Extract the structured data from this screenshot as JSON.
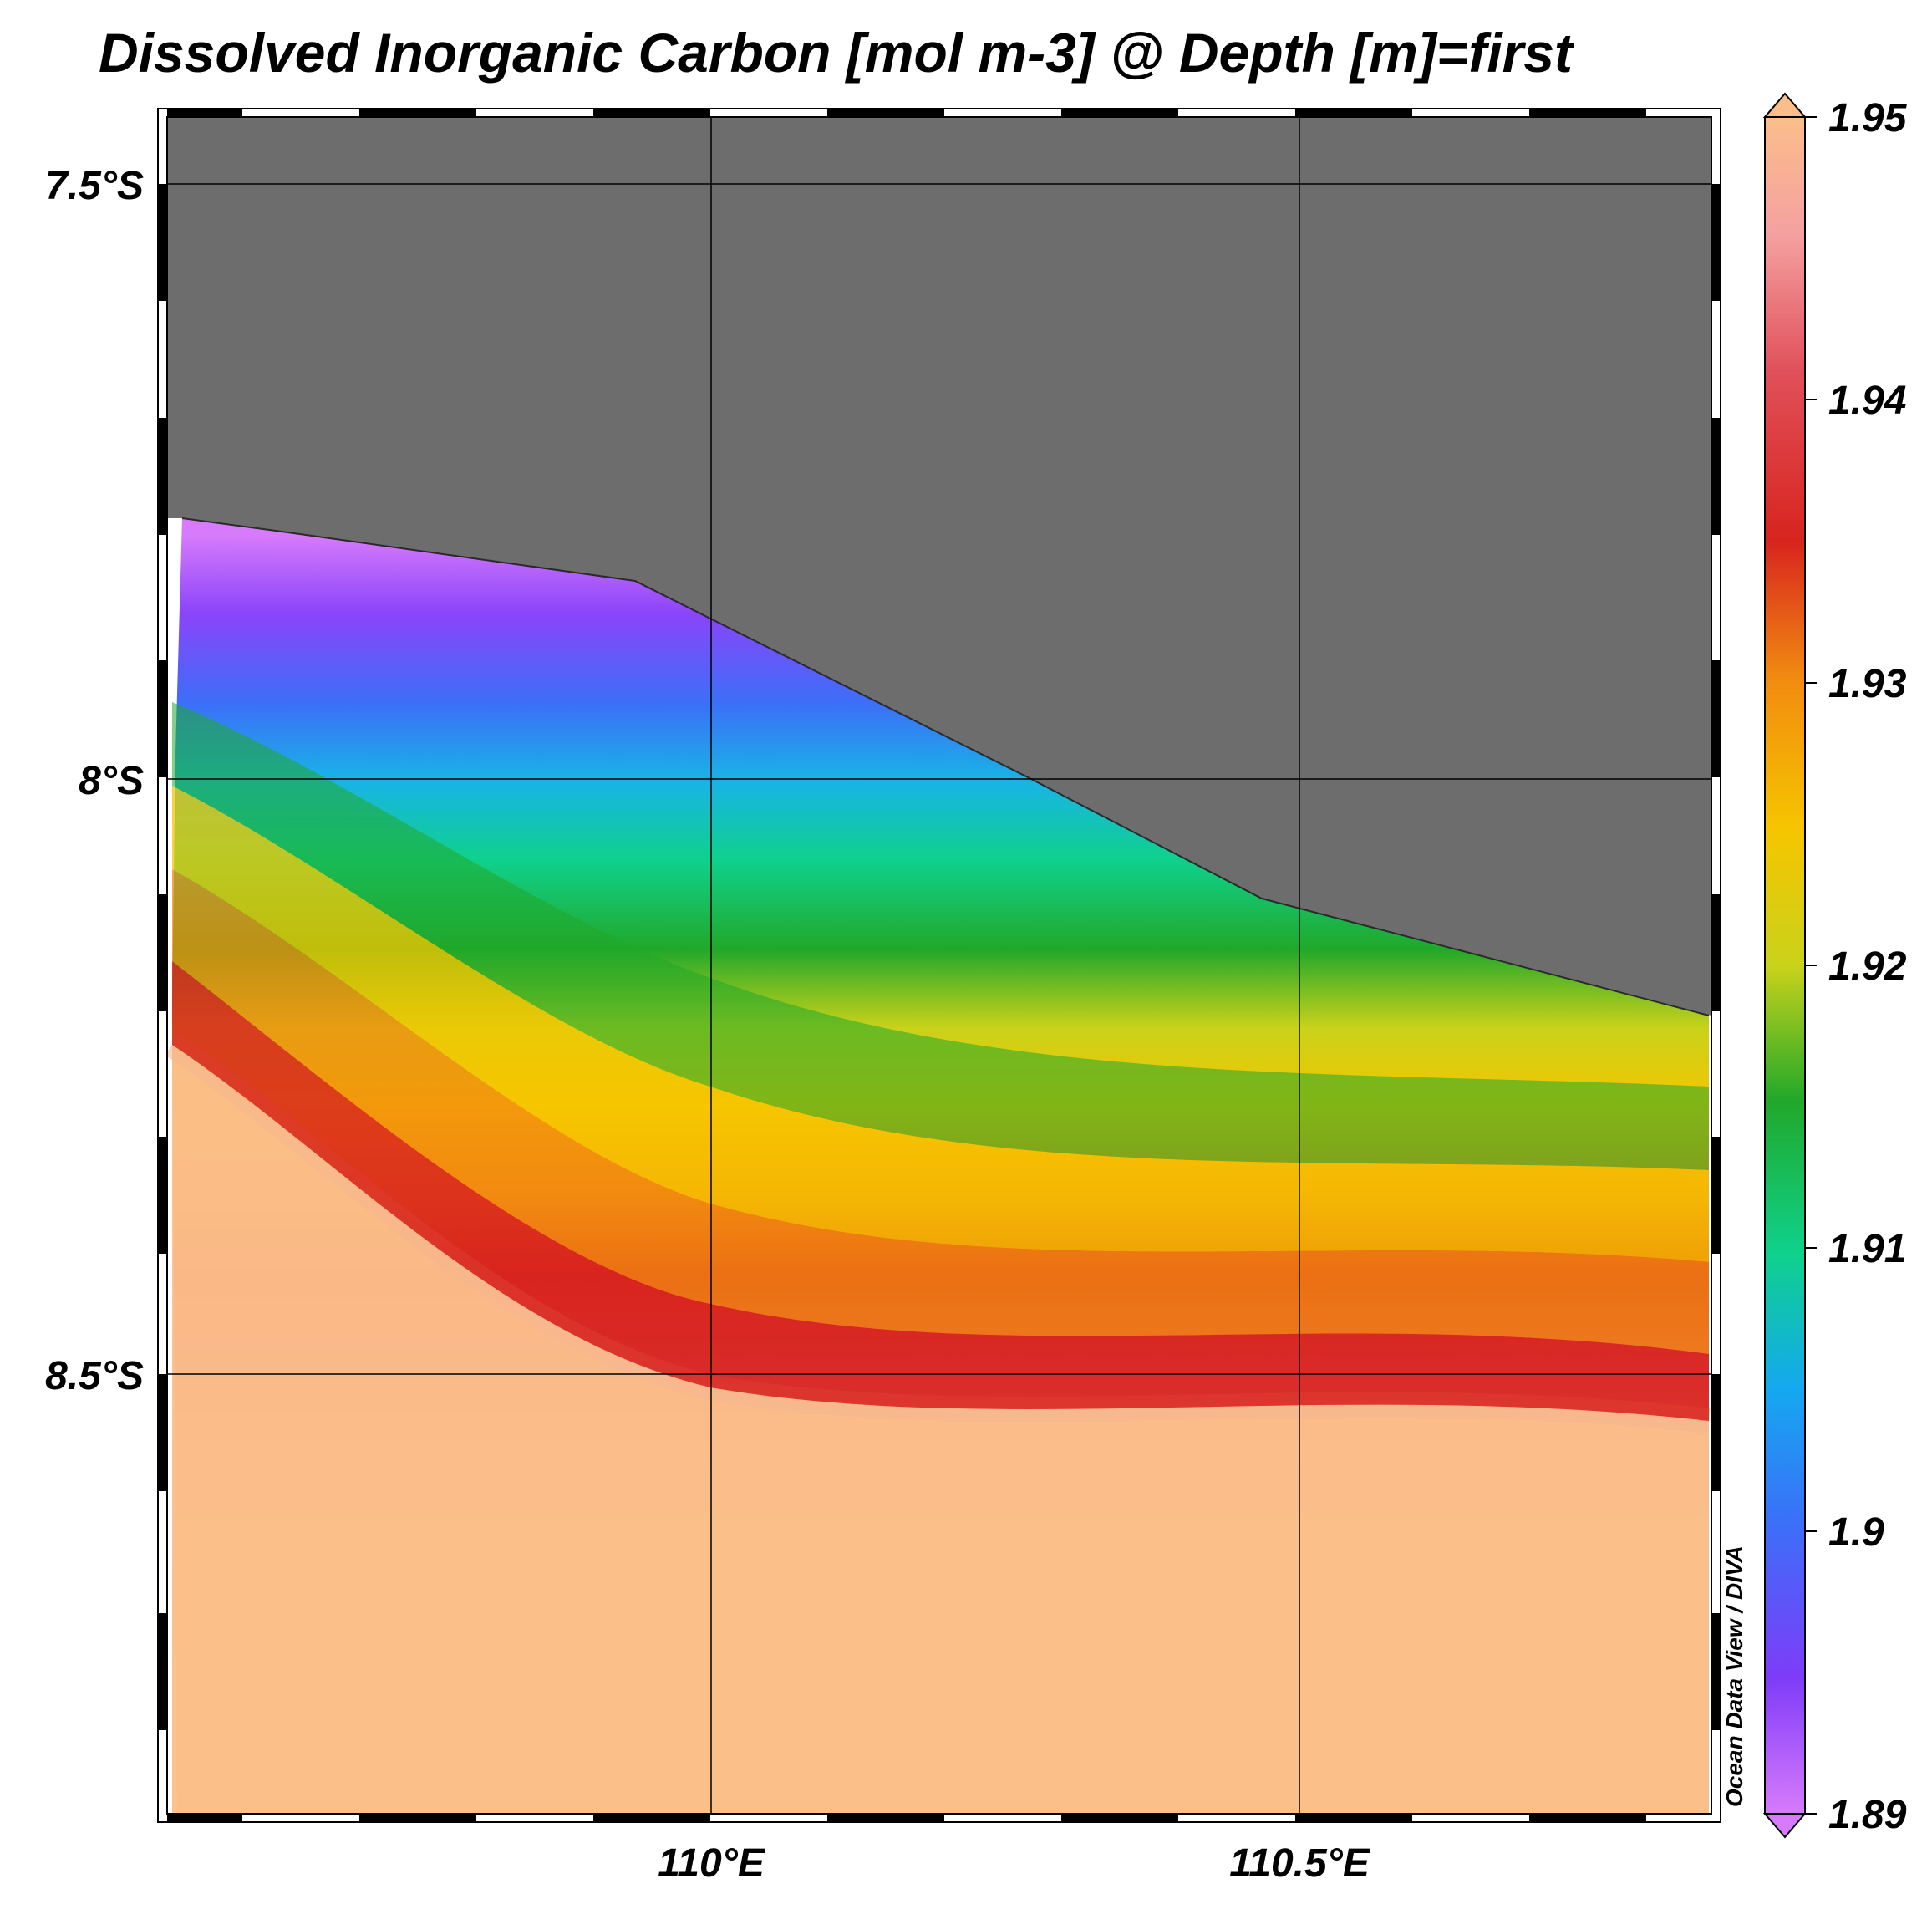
{
  "title": "Dissolved Inorganic Carbon [mol m-3] @ Depth [m]=first",
  "map": {
    "lat_ticks": [
      {
        "value": -7.5,
        "label": "7.5°S"
      },
      {
        "value": -8.0,
        "label": "8°S"
      },
      {
        "value": -8.5,
        "label": "8.5°S"
      }
    ],
    "lon_ticks": [
      {
        "value": 110.0,
        "label": "110°E"
      },
      {
        "value": 110.5,
        "label": "110.5°E"
      }
    ],
    "lon_range": [
      109.53,
      110.85
    ],
    "lat_range": [
      -8.86,
      -7.44
    ],
    "land_color": "#6d6d6d",
    "grid": true
  },
  "colorbar": {
    "min": 1.89,
    "max": 1.95,
    "ticks": [
      "1.95",
      "1.94",
      "1.93",
      "1.92",
      "1.91",
      "1.9",
      "1.89"
    ],
    "extend": "both",
    "colors": [
      "#d77bfc",
      "#7e3cf8",
      "#2b8af8",
      "#0fd18c",
      "#21a82a",
      "#f6c500",
      "#f18a10",
      "#d8241e",
      "#f7b58f",
      "#fbbe8a"
    ]
  },
  "watermark": "Ocean Data View / DIVA"
}
